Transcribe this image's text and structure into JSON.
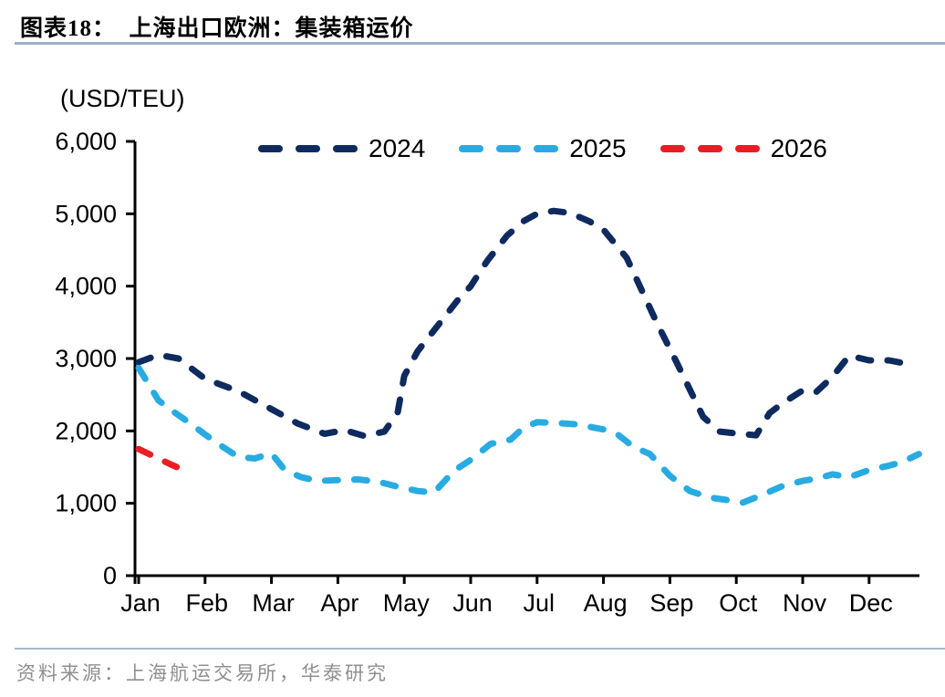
{
  "page": {
    "title": "图表18：  上海出口欧洲：集装箱运价",
    "source": "资料来源：上海航运交易所，华泰研究"
  },
  "chart_data": {
    "type": "line",
    "title": "上海出口欧洲：集装箱运价",
    "ylabel": "(USD/TEU)",
    "xlabel": "",
    "ylim": [
      0,
      6000
    ],
    "y_ticks": [
      0,
      1000,
      2000,
      3000,
      4000,
      5000,
      6000
    ],
    "y_tick_labels": [
      "0",
      "1,000",
      "2,000",
      "3,000",
      "4,000",
      "5,000",
      "6,000"
    ],
    "x_tick_labels": [
      "Jan",
      "Feb",
      "Mar",
      "Apr",
      "May",
      "Jun",
      "Jul",
      "Aug",
      "Sep",
      "Oct",
      "Nov",
      "Dec"
    ],
    "grid": false,
    "legend_position": "top",
    "line_style": "dashed",
    "points_format": "[month_position_0_is_Jan_11_is_Dec, usd_per_teu]",
    "series": [
      {
        "name": "2024",
        "color": "#0e2a5f",
        "points": [
          [
            0,
            2950
          ],
          [
            0.3,
            3050
          ],
          [
            0.6,
            3000
          ],
          [
            1,
            2720
          ],
          [
            1.5,
            2550
          ],
          [
            2,
            2300
          ],
          [
            2.4,
            2100
          ],
          [
            2.8,
            1960
          ],
          [
            3.1,
            2010
          ],
          [
            3.4,
            1930
          ],
          [
            3.7,
            1990
          ],
          [
            3.9,
            2250
          ],
          [
            4,
            2760
          ],
          [
            4.2,
            3100
          ],
          [
            4.5,
            3450
          ],
          [
            4.8,
            3800
          ],
          [
            5,
            4000
          ],
          [
            5.25,
            4350
          ],
          [
            5.55,
            4700
          ],
          [
            5.8,
            4900
          ],
          [
            6,
            5000
          ],
          [
            6.25,
            5040
          ],
          [
            6.5,
            5010
          ],
          [
            6.8,
            4890
          ],
          [
            7,
            4780
          ],
          [
            7.35,
            4390
          ],
          [
            7.8,
            3500
          ],
          [
            8.1,
            2950
          ],
          [
            8.5,
            2195
          ],
          [
            8.75,
            1990
          ],
          [
            9,
            1965
          ],
          [
            9.3,
            1940
          ],
          [
            9.5,
            2245
          ],
          [
            9.7,
            2385
          ],
          [
            10,
            2560
          ],
          [
            10.2,
            2535
          ],
          [
            10.45,
            2750
          ],
          [
            10.7,
            3040
          ],
          [
            11,
            2975
          ],
          [
            11.3,
            2975
          ],
          [
            11.5,
            2940
          ]
        ]
      },
      {
        "name": "2025",
        "color": "#29abe2",
        "points": [
          [
            0,
            2870
          ],
          [
            0.3,
            2420
          ],
          [
            0.55,
            2250
          ],
          [
            0.8,
            2090
          ],
          [
            1,
            1950
          ],
          [
            1.25,
            1790
          ],
          [
            1.5,
            1640
          ],
          [
            1.75,
            1620
          ],
          [
            2,
            1690
          ],
          [
            2.2,
            1460
          ],
          [
            2.45,
            1360
          ],
          [
            2.7,
            1310
          ],
          [
            3,
            1320
          ],
          [
            3.3,
            1330
          ],
          [
            3.6,
            1300
          ],
          [
            3.9,
            1230
          ],
          [
            4.2,
            1170
          ],
          [
            4.45,
            1150
          ],
          [
            4.75,
            1450
          ],
          [
            5,
            1600
          ],
          [
            5.3,
            1820
          ],
          [
            5.6,
            1880
          ],
          [
            5.8,
            2050
          ],
          [
            6,
            2120
          ],
          [
            6.3,
            2110
          ],
          [
            6.6,
            2090
          ],
          [
            7,
            2020
          ],
          [
            7.2,
            1960
          ],
          [
            7.45,
            1780
          ],
          [
            7.7,
            1680
          ],
          [
            8,
            1380
          ],
          [
            8.3,
            1170
          ],
          [
            8.6,
            1080
          ],
          [
            8.9,
            1040
          ],
          [
            9.1,
            1010
          ],
          [
            9.4,
            1120
          ],
          [
            9.7,
            1240
          ],
          [
            10,
            1310
          ],
          [
            10.2,
            1340
          ],
          [
            10.45,
            1400
          ],
          [
            10.7,
            1360
          ],
          [
            11,
            1460
          ],
          [
            11.3,
            1520
          ],
          [
            11.5,
            1570
          ],
          [
            11.75,
            1680
          ]
        ]
      },
      {
        "name": "2026",
        "color": "#ec1c24",
        "points": [
          [
            0,
            1750
          ],
          [
            0.25,
            1640
          ],
          [
            0.5,
            1530
          ],
          [
            0.75,
            1430
          ]
        ]
      }
    ]
  },
  "colors": {
    "title_rule": "#9db0ca",
    "footer_rule": "#a6b7cd",
    "axis": "#000000",
    "source_text": "#8f8f8f"
  }
}
